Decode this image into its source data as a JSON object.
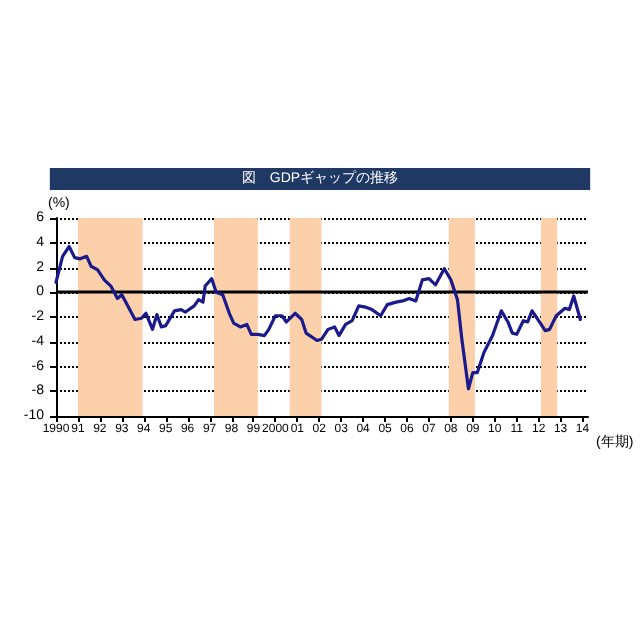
{
  "chart_data": {
    "type": "line",
    "title": "図　GDPギャップの推移",
    "ylabel": "(%)",
    "xlabel": "(年期)",
    "xlim": [
      1990,
      2014.25
    ],
    "xticks": [
      1990,
      {
        "value": 1991,
        "label": "91"
      },
      {
        "value": 1992,
        "label": "92"
      },
      {
        "value": 1993,
        "label": "93"
      },
      {
        "value": 1994,
        "label": "94"
      },
      {
        "value": 1995,
        "label": "95"
      },
      {
        "value": 1996,
        "label": "96"
      },
      {
        "value": 1997,
        "label": "97"
      },
      {
        "value": 1998,
        "label": "98"
      },
      {
        "value": 1999,
        "label": "99"
      },
      2000,
      {
        "value": 2001,
        "label": "01"
      },
      {
        "value": 2002,
        "label": "02"
      },
      {
        "value": 2003,
        "label": "03"
      },
      {
        "value": 2004,
        "label": "04"
      },
      {
        "value": 2005,
        "label": "05"
      },
      {
        "value": 2006,
        "label": "06"
      },
      {
        "value": 2007,
        "label": "07"
      },
      {
        "value": 2008,
        "label": "08"
      },
      {
        "value": 2009,
        "label": "09"
      },
      {
        "value": 2010,
        "label": "10"
      },
      {
        "value": 2011,
        "label": "11"
      },
      {
        "value": 2012,
        "label": "12"
      },
      {
        "value": 2013,
        "label": "13"
      },
      {
        "value": 2014,
        "label": "14"
      }
    ],
    "ylim": [
      -10,
      6
    ],
    "yticks": [
      -10,
      -8,
      -6,
      -4,
      -2,
      0,
      2,
      4,
      6
    ],
    "grid": "y",
    "marker": "none",
    "line_style": "solid",
    "x": [
      1990.0,
      1990.3,
      1990.6,
      1990.85,
      1991.1,
      1991.4,
      1991.6,
      1991.9,
      1992.2,
      1992.5,
      1992.8,
      1993.0,
      1993.3,
      1993.6,
      1993.9,
      1994.1,
      1994.4,
      1994.6,
      1994.8,
      1995.0,
      1995.4,
      1995.7,
      1995.9,
      1996.3,
      1996.5,
      1996.7,
      1996.8,
      1997.1,
      1997.3,
      1997.6,
      1997.9,
      1998.1,
      1998.4,
      1998.7,
      1998.9,
      1999.2,
      1999.5,
      1999.7,
      2000.0,
      2000.3,
      2000.5,
      2000.9,
      2001.2,
      2001.4,
      2001.9,
      2002.1,
      2002.4,
      2002.7,
      2002.9,
      2003.2,
      2003.5,
      2003.8,
      2004.1,
      2004.4,
      2004.8,
      2005.1,
      2005.5,
      2005.8,
      2006.1,
      2006.4,
      2006.7,
      2007.0,
      2007.3,
      2007.7,
      2008.0,
      2008.3,
      2008.5,
      2008.8,
      2009.0,
      2009.2,
      2009.5,
      2009.9,
      2010.3,
      2010.6,
      2010.8,
      2011.0,
      2011.3,
      2011.5,
      2011.7,
      2012.0,
      2012.3,
      2012.5,
      2012.8,
      2013.2,
      2013.4,
      2013.6,
      2013.9
    ],
    "series": [
      {
        "color": "#1a1a8c",
        "values": [
          0.8,
          2.9,
          3.7,
          2.8,
          2.7,
          2.9,
          2.1,
          1.8,
          1.0,
          0.5,
          -0.5,
          -0.2,
          -1.2,
          -2.2,
          -2.1,
          -1.7,
          -3.0,
          -1.8,
          -2.8,
          -2.7,
          -1.5,
          -1.4,
          -1.6,
          -1.1,
          -0.6,
          -0.8,
          0.5,
          1.1,
          0.0,
          -0.2,
          -1.7,
          -2.5,
          -2.8,
          -2.6,
          -3.4,
          -3.4,
          -3.5,
          -3.0,
          -1.9,
          -1.9,
          -2.4,
          -1.7,
          -2.2,
          -3.3,
          -3.9,
          -3.8,
          -3.0,
          -2.8,
          -3.5,
          -2.6,
          -2.3,
          -1.1,
          -1.2,
          -1.4,
          -1.9,
          -1.0,
          -0.8,
          -0.7,
          -0.5,
          -0.7,
          1.0,
          1.1,
          0.6,
          1.9,
          1.0,
          -0.6,
          -3.8,
          -7.8,
          -6.5,
          -6.5,
          -4.9,
          -3.5,
          -1.5,
          -2.4,
          -3.3,
          -3.4,
          -2.3,
          -2.4,
          -1.5,
          -2.3,
          -3.1,
          -3.0,
          -1.9,
          -1.3,
          -1.4,
          -0.3,
          -2.2
        ]
      }
    ],
    "bands": [
      {
        "axis": "x",
        "from": 1991.0,
        "to": 1993.95,
        "color": "#fbd0aa"
      },
      {
        "axis": "x",
        "from": 1997.2,
        "to": 1999.2,
        "color": "#fbd0aa"
      },
      {
        "axis": "x",
        "from": 2000.65,
        "to": 2002.1,
        "color": "#fbd0aa"
      },
      {
        "axis": "x",
        "from": 2007.9,
        "to": 2009.1,
        "color": "#fbd0aa"
      },
      {
        "axis": "x",
        "from": 2012.1,
        "to": 2012.85,
        "color": "#fbd0aa"
      }
    ],
    "ref_lines": [
      {
        "axis": "y",
        "value": 0,
        "color": "#000000",
        "line_style": "solid"
      }
    ]
  }
}
